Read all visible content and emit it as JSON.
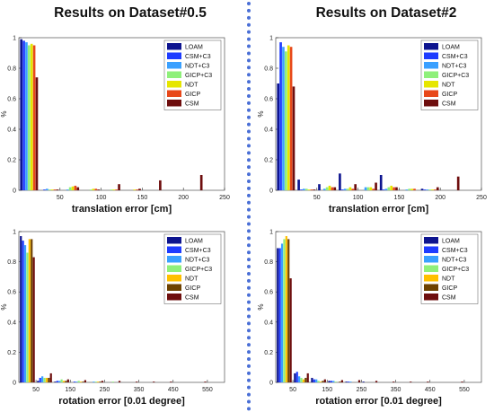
{
  "titles": {
    "left": "Results on Dataset#0.5",
    "right": "Results on Dataset#2"
  },
  "colors": {
    "LOAM": "#0d148f",
    "CSM+C3": "#1e3cff",
    "NDT+C3": "#3aa0ff",
    "GICP+C3": "#8ff07a",
    "NDT": "#e6e600",
    "GICP": "#e8481a",
    "CSM": "#6e0e0e",
    "NDT_rot": "#ffc000",
    "GICP_rot": "#6e4200"
  },
  "chart_data": [
    {
      "type": "bar",
      "ylabel": "%",
      "xlabel": "translation error [cm]",
      "ylim": [
        0,
        1
      ],
      "yticks": [
        "0",
        "0.2",
        "0.4",
        "0.6",
        "0.8",
        "1"
      ],
      "xlim": [
        0,
        250
      ],
      "xticks": [
        "50",
        "100",
        "150",
        "200",
        "250"
      ],
      "bin_width": 25,
      "x": [
        12.5,
        37.5,
        62.5,
        87.5,
        112.5,
        137.5,
        162.5,
        187.5,
        212.5
      ],
      "legend_position": "top-right",
      "series": [
        {
          "name": "LOAM",
          "color": "#0d148f",
          "values": [
            0.99,
            0.0,
            0.0,
            0.0,
            0.0,
            0.0,
            0.0,
            0.0,
            0.0
          ]
        },
        {
          "name": "CSM+C3",
          "color": "#1e3cff",
          "values": [
            0.98,
            0.005,
            0.0,
            0.0,
            0.0,
            0.0,
            0.0,
            0.0,
            0.0
          ]
        },
        {
          "name": "NDT+C3",
          "color": "#3aa0ff",
          "values": [
            0.97,
            0.01,
            0.005,
            0.0,
            0.0,
            0.0,
            0.0,
            0.0,
            0.0
          ]
        },
        {
          "name": "GICP+C3",
          "color": "#8ff07a",
          "values": [
            0.95,
            0.005,
            0.02,
            0.005,
            0.005,
            0.0,
            0.0,
            0.0,
            0.0
          ]
        },
        {
          "name": "NDT",
          "color": "#e6e600",
          "values": [
            0.96,
            0.005,
            0.025,
            0.01,
            0.005,
            0.005,
            0.0,
            0.0,
            0.0
          ]
        },
        {
          "name": "GICP",
          "color": "#e8481a",
          "values": [
            0.95,
            0.005,
            0.03,
            0.01,
            0.005,
            0.005,
            0.0,
            0.0,
            0.0
          ]
        },
        {
          "name": "CSM",
          "color": "#6e0e0e",
          "values": [
            0.74,
            0.005,
            0.02,
            0.005,
            0.04,
            0.01,
            0.065,
            0.0,
            0.1
          ]
        }
      ]
    },
    {
      "type": "bar",
      "ylabel": "%",
      "xlabel": "translation error [cm]",
      "ylim": [
        0,
        1
      ],
      "yticks": [
        "0",
        "0.2",
        "0.4",
        "0.6",
        "0.8",
        "1"
      ],
      "xlim": [
        0,
        250
      ],
      "xticks": [
        "50",
        "100",
        "150",
        "200",
        "250"
      ],
      "bin_width": 25,
      "x": [
        12.5,
        37.5,
        62.5,
        87.5,
        112.5,
        137.5,
        162.5,
        187.5,
        212.5
      ],
      "legend_position": "top-right",
      "series": [
        {
          "name": "LOAM",
          "color": "#0d148f",
          "values": [
            0.7,
            0.07,
            0.04,
            0.11,
            0.0,
            0.1,
            0.0,
            0.01,
            0.0
          ]
        },
        {
          "name": "CSM+C3",
          "color": "#1e3cff",
          "values": [
            0.97,
            0.005,
            0.0,
            0.005,
            0.0,
            0.005,
            0.0,
            0.005,
            0.0
          ]
        },
        {
          "name": "NDT+C3",
          "color": "#3aa0ff",
          "values": [
            0.94,
            0.01,
            0.01,
            0.01,
            0.02,
            0.01,
            0.005,
            0.005,
            0.0
          ]
        },
        {
          "name": "GICP+C3",
          "color": "#8ff07a",
          "values": [
            0.91,
            0.01,
            0.02,
            0.01,
            0.02,
            0.02,
            0.01,
            0.005,
            0.0
          ]
        },
        {
          "name": "NDT",
          "color": "#e6e600",
          "values": [
            0.95,
            0.005,
            0.03,
            0.02,
            0.02,
            0.03,
            0.01,
            0.005,
            0.0
          ]
        },
        {
          "name": "GICP",
          "color": "#e8481a",
          "values": [
            0.94,
            0.005,
            0.02,
            0.01,
            0.01,
            0.02,
            0.01,
            0.005,
            0.0
          ]
        },
        {
          "name": "CSM",
          "color": "#6e0e0e",
          "values": [
            0.68,
            0.005,
            0.02,
            0.04,
            0.05,
            0.02,
            0.0,
            0.02,
            0.09
          ]
        }
      ]
    },
    {
      "type": "bar",
      "ylabel": "%",
      "xlabel": "rotation error [0.01 degree]",
      "ylim": [
        0,
        1
      ],
      "yticks": [
        "0",
        "0.2",
        "0.4",
        "0.6",
        "0.8",
        "1"
      ],
      "xlim": [
        0,
        600
      ],
      "xticks": [
        "50",
        "150",
        "250",
        "350",
        "450",
        "550"
      ],
      "bin_width": 50,
      "x": [
        25,
        75,
        125,
        175,
        225,
        275,
        325,
        375,
        425,
        475,
        525,
        575
      ],
      "legend_position": "top-right",
      "series": [
        {
          "name": "LOAM",
          "color": "#0d148f",
          "values": [
            0.97,
            0.01,
            0.005,
            0.0,
            0.0,
            0.0,
            0.0,
            0.0,
            0.0,
            0.0,
            0.0,
            0.0
          ]
        },
        {
          "name": "CSM+C3",
          "color": "#1e3cff",
          "values": [
            0.94,
            0.03,
            0.01,
            0.005,
            0.0,
            0.0,
            0.0,
            0.0,
            0.0,
            0.0,
            0.0,
            0.0
          ]
        },
        {
          "name": "NDT+C3",
          "color": "#3aa0ff",
          "values": [
            0.91,
            0.04,
            0.01,
            0.005,
            0.005,
            0.0,
            0.0,
            0.0,
            0.0,
            0.0,
            0.0,
            0.0
          ]
        },
        {
          "name": "GICP+C3",
          "color": "#8ff07a",
          "values": [
            0.86,
            0.03,
            0.02,
            0.01,
            0.005,
            0.005,
            0.0,
            0.0,
            0.0,
            0.0,
            0.0,
            0.0
          ]
        },
        {
          "name": "NDT",
          "color": "#ffc000",
          "values": [
            0.95,
            0.03,
            0.01,
            0.005,
            0.005,
            0.0,
            0.0,
            0.0,
            0.0,
            0.0,
            0.0,
            0.0
          ]
        },
        {
          "name": "GICP",
          "color": "#6e4200",
          "values": [
            0.95,
            0.03,
            0.01,
            0.005,
            0.005,
            0.0,
            0.0,
            0.0,
            0.0,
            0.0,
            0.0,
            0.0
          ]
        },
        {
          "name": "CSM",
          "color": "#6e0e0e",
          "values": [
            0.83,
            0.06,
            0.02,
            0.015,
            0.01,
            0.01,
            0.005,
            0.005,
            0.005,
            0.0,
            0.005,
            0.0
          ]
        }
      ]
    },
    {
      "type": "bar",
      "ylabel": "%",
      "xlabel": "rotation error [0.01 degree]",
      "ylim": [
        0,
        1
      ],
      "yticks": [
        "0",
        "0.2",
        "0.4",
        "0.6",
        "0.8",
        "1"
      ],
      "xlim": [
        0,
        600
      ],
      "xticks": [
        "50",
        "150",
        "250",
        "350",
        "450",
        "550"
      ],
      "bin_width": 50,
      "x": [
        25,
        75,
        125,
        175,
        225,
        275,
        325,
        375,
        425,
        475,
        525,
        575
      ],
      "legend_position": "top-right",
      "series": [
        {
          "name": "LOAM",
          "color": "#0d148f",
          "values": [
            0.89,
            0.06,
            0.03,
            0.01,
            0.005,
            0.005,
            0.0,
            0.0,
            0.0,
            0.0,
            0.0,
            0.0
          ]
        },
        {
          "name": "CSM+C3",
          "color": "#1e3cff",
          "values": [
            0.89,
            0.07,
            0.02,
            0.01,
            0.005,
            0.0,
            0.0,
            0.0,
            0.0,
            0.0,
            0.0,
            0.0
          ]
        },
        {
          "name": "NDT+C3",
          "color": "#3aa0ff",
          "values": [
            0.92,
            0.04,
            0.02,
            0.01,
            0.005,
            0.0,
            0.0,
            0.0,
            0.0,
            0.0,
            0.0,
            0.0
          ]
        },
        {
          "name": "GICP+C3",
          "color": "#8ff07a",
          "values": [
            0.95,
            0.03,
            0.01,
            0.005,
            0.0,
            0.0,
            0.0,
            0.0,
            0.0,
            0.0,
            0.0,
            0.0
          ]
        },
        {
          "name": "NDT",
          "color": "#ffc000",
          "values": [
            0.97,
            0.02,
            0.005,
            0.0,
            0.0,
            0.0,
            0.0,
            0.0,
            0.0,
            0.0,
            0.0,
            0.0
          ]
        },
        {
          "name": "GICP",
          "color": "#6e4200",
          "values": [
            0.95,
            0.03,
            0.01,
            0.005,
            0.0,
            0.0,
            0.0,
            0.0,
            0.0,
            0.0,
            0.0,
            0.0
          ]
        },
        {
          "name": "CSM",
          "color": "#6e0e0e",
          "values": [
            0.69,
            0.06,
            0.02,
            0.015,
            0.015,
            0.01,
            0.005,
            0.005,
            0.005,
            0.0,
            0.005,
            0.0
          ]
        }
      ]
    }
  ]
}
